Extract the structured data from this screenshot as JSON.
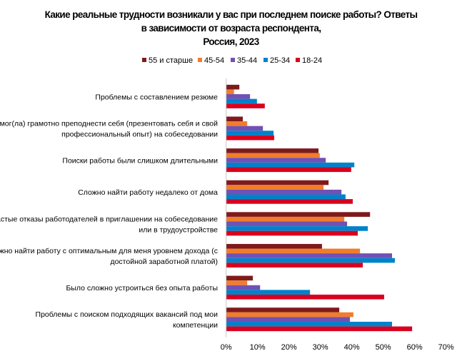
{
  "chart_data": {
    "type": "bar",
    "orientation": "horizontal",
    "title": [
      "Какие реальные трудности возникали у вас при последнем поиске работы? Ответы",
      "в зависимости от возраста респондента,",
      "Россия, 2023"
    ],
    "categories": [
      [
        "Проблемы с составлением резюме"
      ],
      [
        "Не мог(ла) грамотно преподнести себя (презентовать себя и свой",
        "профессиональный опыт) на собеседовании"
      ],
      [
        "Поиски работы были слишком длительными"
      ],
      [
        "Сложно найти работу недалеко от дома"
      ],
      [
        "Частые отказы работодателей в приглашении на собеседование",
        "или в трудоустройстве"
      ],
      [
        "Сложно найти работу с оптимальным для меня уровнем дохода (с",
        "достойной заработной платой)"
      ],
      [
        "Было сложно устроиться без опыта работы"
      ],
      [
        "Проблемы с поиском подходящих вакансий под мои",
        "компетенции"
      ]
    ],
    "series": [
      {
        "name": "55 и старше",
        "color": "#7f1a1c",
        "values": [
          4.2,
          5.3,
          29.4,
          32.6,
          45.8,
          30.5,
          8.5,
          36.0
        ]
      },
      {
        "name": "45-54",
        "color": "#f07d2c",
        "values": [
          2.5,
          6.7,
          29.8,
          31.0,
          37.6,
          42.6,
          6.7,
          40.5
        ]
      },
      {
        "name": "35-44",
        "color": "#7250b4",
        "values": [
          7.6,
          11.7,
          31.7,
          36.7,
          38.5,
          52.8,
          10.8,
          39.4
        ]
      },
      {
        "name": "25-34",
        "color": "#0082ca",
        "values": [
          9.8,
          15.1,
          40.8,
          38.0,
          45.1,
          53.7,
          26.7,
          52.8
        ]
      },
      {
        "name": "18-24",
        "color": "#d9001f",
        "values": [
          12.3,
          15.3,
          39.8,
          40.3,
          41.9,
          43.5,
          50.3,
          59.2
        ]
      }
    ],
    "xlim": [
      0,
      70
    ],
    "xticks": [
      "0%",
      "10%",
      "20%",
      "30%",
      "40%",
      "50%",
      "60%",
      "70%"
    ],
    "unit": "%",
    "grid": false,
    "legend": "top"
  }
}
